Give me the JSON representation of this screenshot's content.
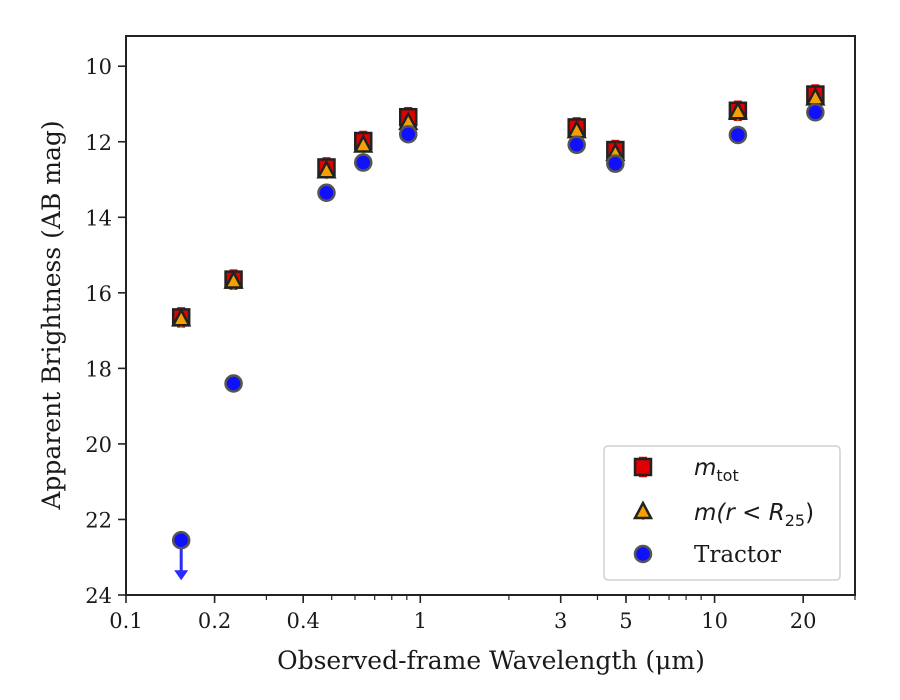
{
  "chart_data": {
    "type": "scatter",
    "title": "",
    "xlabel": "Observed-frame Wavelength (μm)",
    "ylabel": "Apparent Brightness (AB mag)",
    "xscale": "log",
    "xlim": [
      0.1,
      30
    ],
    "ylim": [
      24,
      9.2
    ],
    "y_inverted": true,
    "grid": false,
    "legend_position": "bottom-right",
    "x_ticks": [
      {
        "value": 0.1,
        "label": "0.1"
      },
      {
        "value": 0.2,
        "label": "0.2"
      },
      {
        "value": 0.4,
        "label": "0.4"
      },
      {
        "value": 1,
        "label": "1"
      },
      {
        "value": 3,
        "label": "3"
      },
      {
        "value": 5,
        "label": "5"
      },
      {
        "value": 10,
        "label": "10"
      },
      {
        "value": 20,
        "label": "20"
      }
    ],
    "y_ticks": [
      {
        "value": 10,
        "label": "10"
      },
      {
        "value": 12,
        "label": "12"
      },
      {
        "value": 14,
        "label": "14"
      },
      {
        "value": 16,
        "label": "16"
      },
      {
        "value": 18,
        "label": "18"
      },
      {
        "value": 20,
        "label": "20"
      },
      {
        "value": 22,
        "label": "22"
      },
      {
        "value": 24,
        "label": "24"
      }
    ],
    "series": [
      {
        "name": "m_tot",
        "label_main": "m",
        "label_sub": "tot",
        "marker": "square",
        "color": "#e00000",
        "errcolor": "#e00000",
        "points": [
          {
            "x": 0.154,
            "y": 16.65
          },
          {
            "x": 0.232,
            "y": 15.65
          },
          {
            "x": 0.48,
            "y": 12.68
          },
          {
            "x": 0.64,
            "y": 11.98
          },
          {
            "x": 0.91,
            "y": 11.35
          },
          {
            "x": 3.4,
            "y": 11.62
          },
          {
            "x": 4.6,
            "y": 12.22
          },
          {
            "x": 12.0,
            "y": 11.18
          },
          {
            "x": 22.0,
            "y": 10.75
          }
        ]
      },
      {
        "name": "m(r < R25)",
        "label_main": "m(r < R",
        "label_sub": "25",
        "label_tail": ")",
        "marker": "triangle",
        "color": "#f5a000",
        "errcolor": "#f5a000",
        "points": [
          {
            "x": 0.154,
            "y": 16.7
          },
          {
            "x": 0.232,
            "y": 15.7
          },
          {
            "x": 0.48,
            "y": 12.78
          },
          {
            "x": 0.64,
            "y": 12.1
          },
          {
            "x": 0.91,
            "y": 11.5
          },
          {
            "x": 3.4,
            "y": 11.72
          },
          {
            "x": 4.6,
            "y": 12.32
          },
          {
            "x": 12.0,
            "y": 11.22
          },
          {
            "x": 22.0,
            "y": 10.85
          }
        ]
      },
      {
        "name": "Tractor",
        "label_main": "Tractor",
        "marker": "circle",
        "color": "#1010ff",
        "errcolor": "#2020ff",
        "points": [
          {
            "x": 0.154,
            "y": 22.55,
            "upper_limit": true
          },
          {
            "x": 0.232,
            "y": 18.4
          },
          {
            "x": 0.48,
            "y": 13.35
          },
          {
            "x": 0.64,
            "y": 12.55
          },
          {
            "x": 0.91,
            "y": 11.8
          },
          {
            "x": 3.4,
            "y": 12.08
          },
          {
            "x": 4.6,
            "y": 12.58
          },
          {
            "x": 12.0,
            "y": 11.82
          },
          {
            "x": 22.0,
            "y": 11.22
          }
        ]
      }
    ]
  }
}
